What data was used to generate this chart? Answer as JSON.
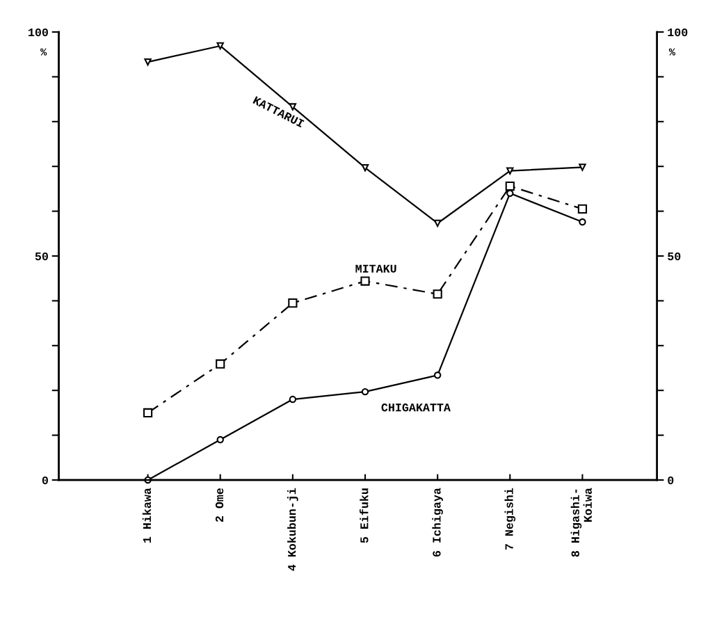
{
  "chart_data": {
    "type": "line",
    "categories": [
      "1 Hikawa",
      "2 Ome",
      "4 Kokubun-ji",
      "5 Eifuku",
      "6 Ichigaya",
      "7 Negishi",
      "8 Higashi-\nKoiwa"
    ],
    "series": [
      {
        "name": "KATTARUI",
        "color": "#000000",
        "marker": "triangle",
        "line_style": "solid",
        "values": [
          93.3,
          96.9,
          83.3,
          69.7,
          57.3,
          69,
          69.8
        ]
      },
      {
        "name": "MITAKU",
        "color": "#000000",
        "marker": "square",
        "line_style": "dashed",
        "values": [
          15,
          25.9,
          39.5,
          44.4,
          41.5,
          65.6,
          60.5
        ]
      },
      {
        "name": "CHIGAKATTA",
        "color": "#000000",
        "marker": "circle",
        "line_style": "solid",
        "values": [
          0,
          9,
          18,
          19.7,
          23.4,
          64,
          57.6
        ]
      }
    ],
    "ylabel": "%",
    "y2label": "%",
    "ylim": [
      0,
      100
    ],
    "yticks": [
      0,
      {
        "value": 10,
        "label": null
      },
      {
        "value": 20,
        "label": null
      },
      {
        "value": 30,
        "label": null
      },
      {
        "value": 40,
        "label": null
      },
      50,
      {
        "value": 60,
        "label": null
      },
      {
        "value": 70,
        "label": null
      },
      {
        "value": 80,
        "label": null
      },
      {
        "value": 90,
        "label": null
      },
      100
    ],
    "y2lim": [
      0,
      100
    ],
    "y2ticks": [
      0,
      {
        "value": 10,
        "label": null
      },
      {
        "value": 20,
        "label": null
      },
      {
        "value": 30,
        "label": null
      },
      {
        "value": 40,
        "label": null
      },
      50,
      {
        "value": 60,
        "label": null
      },
      {
        "value": 70,
        "label": null
      },
      {
        "value": 80,
        "label": null
      },
      {
        "value": 90,
        "label": null
      },
      100
    ],
    "grid": false,
    "legend": false
  }
}
